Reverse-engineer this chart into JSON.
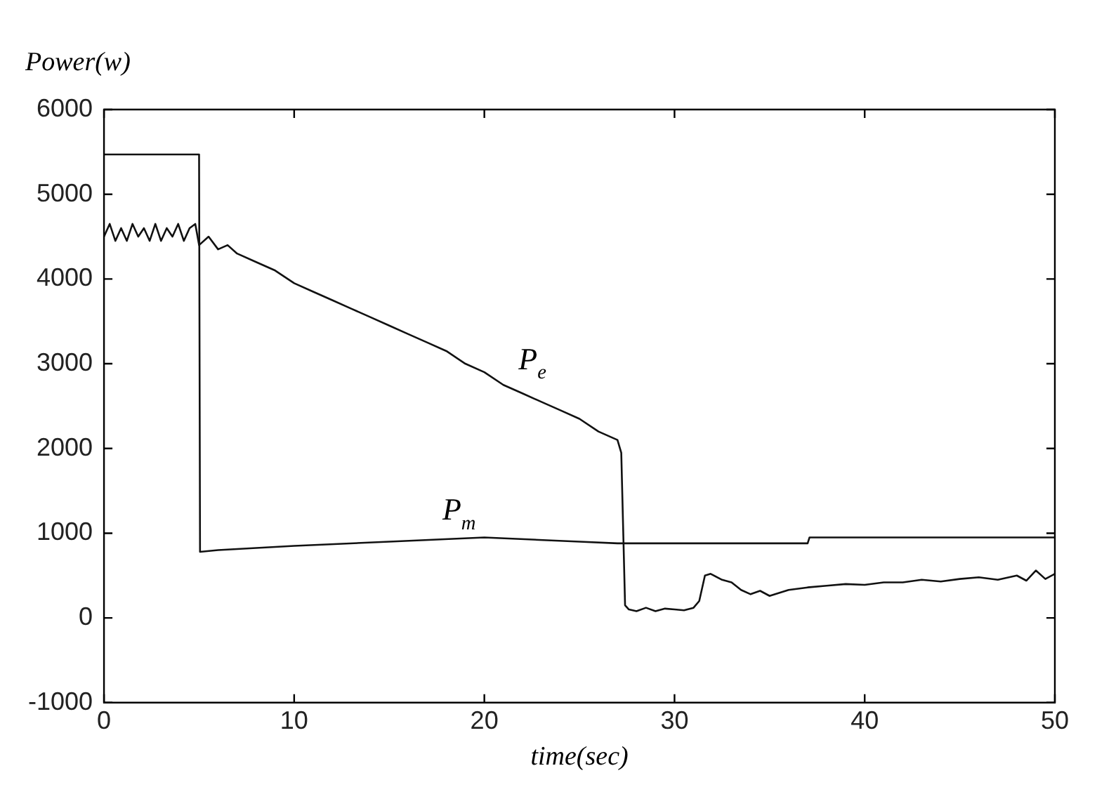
{
  "chart_data": {
    "type": "line",
    "xlabel": "time(sec)",
    "ylabel": "Power(w)",
    "xlim": [
      0,
      50
    ],
    "ylim": [
      -1000,
      6000
    ],
    "xticks": [
      0,
      10,
      20,
      30,
      40,
      50
    ],
    "yticks": [
      -1000,
      0,
      1000,
      2000,
      3000,
      4000,
      5000,
      6000
    ],
    "grid": false,
    "legend": false,
    "marker": "none",
    "line_style": "solid",
    "series": [
      {
        "color": "#111111",
        "x": [
          0,
          0.3,
          0.6,
          0.9,
          1.2,
          1.5,
          1.8,
          2.1,
          2.4,
          2.7,
          3.0,
          3.3,
          3.6,
          3.9,
          4.2,
          4.5,
          4.8,
          5.0,
          5.5,
          6,
          6.5,
          7,
          8,
          9,
          10,
          11,
          12,
          13,
          14,
          15,
          16,
          17,
          18,
          19,
          20,
          21,
          22,
          23,
          24,
          25,
          26,
          27,
          27.2,
          27.4,
          27.6,
          28,
          28.5,
          29,
          29.5,
          30,
          30.5,
          31,
          31.3,
          31.6,
          31.9,
          32.5,
          33,
          33.5,
          34,
          34.5,
          35,
          36,
          37,
          38,
          39,
          40,
          41,
          42,
          43,
          44,
          45,
          46,
          47,
          48,
          48.5,
          49,
          49.5,
          50
        ],
        "values": [
          4500,
          4650,
          4450,
          4600,
          4450,
          4650,
          4500,
          4600,
          4450,
          4650,
          4450,
          4600,
          4500,
          4650,
          4450,
          4600,
          4650,
          4400,
          4500,
          4350,
          4400,
          4300,
          4200,
          4100,
          3950,
          3850,
          3750,
          3650,
          3550,
          3450,
          3350,
          3250,
          3150,
          3000,
          2900,
          2750,
          2650,
          2550,
          2450,
          2350,
          2200,
          2100,
          1950,
          150,
          100,
          80,
          120,
          80,
          110,
          100,
          90,
          120,
          200,
          500,
          520,
          450,
          420,
          330,
          280,
          320,
          260,
          330,
          360,
          380,
          400,
          390,
          420,
          420,
          450,
          430,
          460,
          480,
          450,
          500,
          440,
          560,
          460,
          520
        ]
      },
      {
        "color": "#111111",
        "x": [
          0,
          5,
          5.05,
          6,
          10,
          15,
          20,
          25,
          27,
          30,
          37,
          37.1,
          50
        ],
        "values": [
          5470,
          5470,
          780,
          800,
          850,
          900,
          950,
          900,
          880,
          880,
          880,
          950,
          950
        ]
      }
    ],
    "annotations": [
      {
        "text": "P$_{e}$",
        "x": 21.5,
        "y": 2700
      },
      {
        "text": "P$_{m}$",
        "x": 17.5,
        "y": 925
      }
    ]
  }
}
